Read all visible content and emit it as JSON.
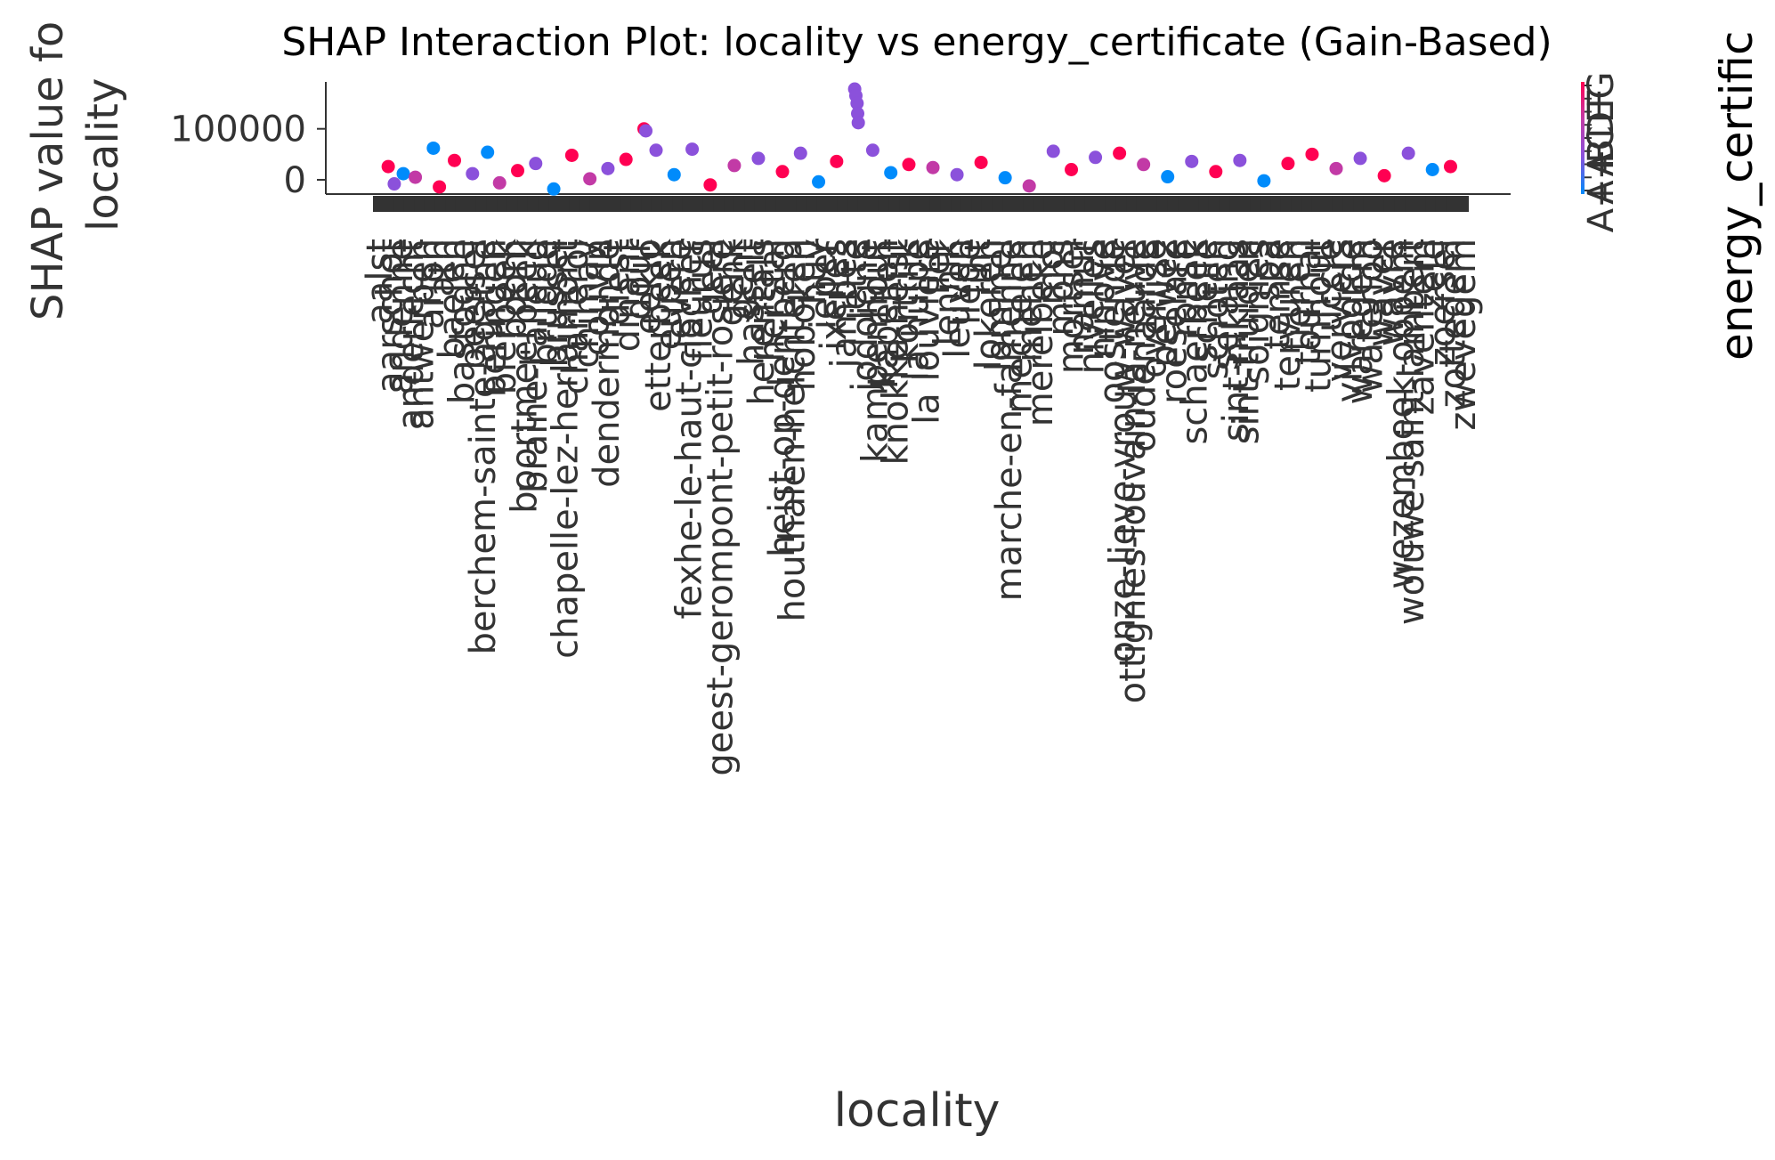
{
  "chart_data": {
    "type": "scatter",
    "title": "SHAP Interaction Plot: locality vs energy_certificate (Gain-Based)",
    "xlabel": "locality",
    "ylabel_lines": [
      "SHAP value fo",
      "locality"
    ],
    "ylim": [
      -28000,
      192000
    ],
    "yticks": [
      0,
      100000
    ],
    "ytick_labels": [
      "0",
      "100000"
    ],
    "colorbar": {
      "label": "energy_certific",
      "tick_labels": [
        "G",
        "F",
        "E",
        "D",
        "C",
        "B",
        "A",
        "A+",
        "A++"
      ],
      "colors": [
        "#ff0052",
        "#c23aa6",
        "#8b51db",
        "#008bfb"
      ]
    },
    "x_tick_labels": [
      "aalst",
      "aarschot",
      "andenne",
      "anderlecht",
      "antwerpen",
      "arlon",
      "ath",
      "baelen",
      "bastogne",
      "beersel",
      "berchem-sainte-agathe",
      "beringen",
      "bierbeek",
      "boom",
      "boortmeerbeek",
      "braine-l'alleud",
      "brugge",
      "brussel",
      "chapelle-lez-herlaimont",
      "charleroi",
      "chimay",
      "couvin",
      "dendermonde",
      "diest",
      "dinant",
      "dour",
      "eeklo",
      "etterbeek",
      "eupen",
      "evere",
      "fexhe-le-haut-clocher",
      "fleurus",
      "geel",
      "geest-gerompont-petit-rosière",
      "genk",
      "gent",
      "hasselt",
      "herentals",
      "herstal",
      "heist-op-den-berg",
      "houthalen-helchteren",
      "hoboken",
      "huy",
      "ieper",
      "ixelles",
      "jambes",
      "jette",
      "jodoigne",
      "kampenhout",
      "kapellen",
      "knokke-heist",
      "kortrijk",
      "la hulpe",
      "la louvière",
      "lier",
      "lennik",
      "leuven",
      "liège",
      "lint",
      "lokeren",
      "lommel",
      "marche-en-famenne",
      "mechelen",
      "menen",
      "merelbeke",
      "mol",
      "mons",
      "mortsel",
      "namur",
      "nivelles",
      "ninove",
      "oostende",
      "onze-lieve-vrouw-waver",
      "ottignies-louvain-la-neuve",
      "oudenaarde",
      "overijse",
      "perwez",
      "roeselare",
      "ronse",
      "schaerbeek",
      "schelle",
      "schoten",
      "seraing",
      "sint-niklaas",
      "sint-truiden",
      "soignies",
      "spa",
      "temse",
      "tervuren",
      "tienen",
      "tournai",
      "turnhout",
      "uccle",
      "verviers",
      "vilvoorde",
      "waregem",
      "waterloo",
      "waver",
      "wavre",
      "wezembeek-oppem",
      "woluwe-saint-lambert",
      "zaventem",
      "zele",
      "zoersel",
      "zottegem",
      "zwevegem"
    ],
    "points": [
      {
        "x": 3,
        "y": 26000,
        "c": "#ff0052"
      },
      {
        "x": 5,
        "y": -8000,
        "c": "#8b51db"
      },
      {
        "x": 8,
        "y": 12000,
        "c": "#008bfb"
      },
      {
        "x": 12,
        "y": 5000,
        "c": "#c23aa6"
      },
      {
        "x": 18,
        "y": 62000,
        "c": "#008bfb"
      },
      {
        "x": 20,
        "y": -14000,
        "c": "#ff0052"
      },
      {
        "x": 25,
        "y": 38000,
        "c": "#ff0052"
      },
      {
        "x": 31,
        "y": 12000,
        "c": "#8b51db"
      },
      {
        "x": 36,
        "y": 54000,
        "c": "#008bfb"
      },
      {
        "x": 40,
        "y": -6000,
        "c": "#c23aa6"
      },
      {
        "x": 46,
        "y": 18000,
        "c": "#ff0052"
      },
      {
        "x": 52,
        "y": 32000,
        "c": "#8b51db"
      },
      {
        "x": 58,
        "y": -18000,
        "c": "#008bfb"
      },
      {
        "x": 64,
        "y": 48000,
        "c": "#ff0052"
      },
      {
        "x": 70,
        "y": 2000,
        "c": "#c23aa6"
      },
      {
        "x": 76,
        "y": 22000,
        "c": "#8b51db"
      },
      {
        "x": 82,
        "y": 40000,
        "c": "#ff0052"
      },
      {
        "x": 88,
        "y": 100000,
        "c": "#ff0052"
      },
      {
        "x": 88.6,
        "y": 96000,
        "c": "#8b51db"
      },
      {
        "x": 92,
        "y": 58000,
        "c": "#8b51db"
      },
      {
        "x": 98,
        "y": 10000,
        "c": "#008bfb"
      },
      {
        "x": 104,
        "y": 60000,
        "c": "#8b51db"
      },
      {
        "x": 110,
        "y": -10000,
        "c": "#ff0052"
      },
      {
        "x": 118,
        "y": 28000,
        "c": "#c23aa6"
      },
      {
        "x": 126,
        "y": 42000,
        "c": "#8b51db"
      },
      {
        "x": 134,
        "y": 16000,
        "c": "#ff0052"
      },
      {
        "x": 140,
        "y": 52000,
        "c": "#8b51db"
      },
      {
        "x": 146,
        "y": -4000,
        "c": "#008bfb"
      },
      {
        "x": 152,
        "y": 36000,
        "c": "#ff0052"
      },
      {
        "x": 158,
        "y": 178000,
        "c": "#8b51db"
      },
      {
        "x": 158.4,
        "y": 165000,
        "c": "#8b51db"
      },
      {
        "x": 158.8,
        "y": 150000,
        "c": "#8b51db"
      },
      {
        "x": 159,
        "y": 130000,
        "c": "#8b51db"
      },
      {
        "x": 159.2,
        "y": 112000,
        "c": "#8b51db"
      },
      {
        "x": 164,
        "y": 58000,
        "c": "#8b51db"
      },
      {
        "x": 170,
        "y": 14000,
        "c": "#008bfb"
      },
      {
        "x": 176,
        "y": 30000,
        "c": "#ff0052"
      },
      {
        "x": 184,
        "y": 24000,
        "c": "#c23aa6"
      },
      {
        "x": 192,
        "y": 10000,
        "c": "#8b51db"
      },
      {
        "x": 200,
        "y": 34000,
        "c": "#ff0052"
      },
      {
        "x": 208,
        "y": 4000,
        "c": "#008bfb"
      },
      {
        "x": 216,
        "y": -12000,
        "c": "#c23aa6"
      },
      {
        "x": 224,
        "y": 56000,
        "c": "#8b51db"
      },
      {
        "x": 230,
        "y": 20000,
        "c": "#ff0052"
      },
      {
        "x": 238,
        "y": 44000,
        "c": "#8b51db"
      },
      {
        "x": 246,
        "y": 52000,
        "c": "#ff0052"
      },
      {
        "x": 254,
        "y": 30000,
        "c": "#c23aa6"
      },
      {
        "x": 262,
        "y": 6000,
        "c": "#008bfb"
      },
      {
        "x": 270,
        "y": 36000,
        "c": "#8b51db"
      },
      {
        "x": 278,
        "y": 16000,
        "c": "#ff0052"
      },
      {
        "x": 286,
        "y": 38000,
        "c": "#8b51db"
      },
      {
        "x": 294,
        "y": -2000,
        "c": "#008bfb"
      },
      {
        "x": 302,
        "y": 32000,
        "c": "#ff0052"
      },
      {
        "x": 310,
        "y": 50000,
        "c": "#ff0052"
      },
      {
        "x": 318,
        "y": 22000,
        "c": "#c23aa6"
      },
      {
        "x": 326,
        "y": 42000,
        "c": "#8b51db"
      },
      {
        "x": 334,
        "y": 8000,
        "c": "#ff0052"
      },
      {
        "x": 342,
        "y": 52000,
        "c": "#8b51db"
      },
      {
        "x": 350,
        "y": 20000,
        "c": "#008bfb"
      },
      {
        "x": 356,
        "y": 26000,
        "c": "#ff0052"
      }
    ]
  }
}
